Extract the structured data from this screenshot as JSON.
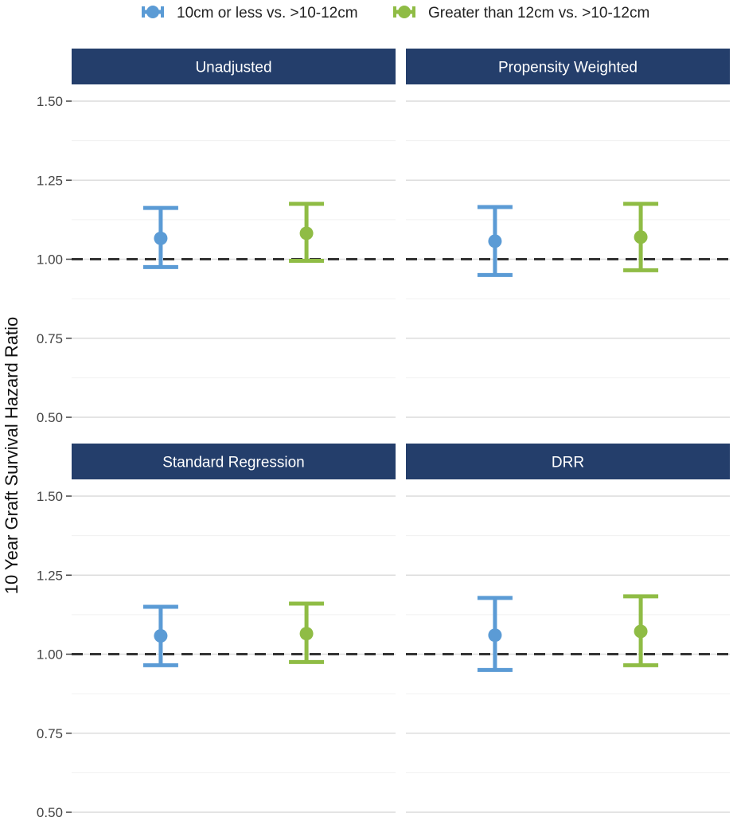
{
  "chart_data": {
    "type": "errorbar",
    "ylabel": "10 Year Graft Survival Hazard Ratio",
    "xlabel": "",
    "ylim": [
      0.5,
      1.5
    ],
    "yticks": [
      0.5,
      0.75,
      1.0,
      1.25,
      1.5
    ],
    "ytick_labels": [
      "0.50",
      "0.75",
      "1.00",
      "1.25",
      "1.50"
    ],
    "reference_line": 1.0,
    "grid": true,
    "legend_position": "top",
    "series": [
      {
        "name": "10cm or less vs. >10-12cm",
        "color": "#5b9bd5"
      },
      {
        "name": "Greater than 12cm vs. >10-12cm",
        "color": "#8fbc45"
      }
    ],
    "panels": [
      {
        "title": "Unadjusted",
        "estimates": [
          {
            "series": 0,
            "estimate": 1.066,
            "lower": 0.975,
            "upper": 1.162
          },
          {
            "series": 1,
            "estimate": 1.082,
            "lower": 0.995,
            "upper": 1.175
          }
        ]
      },
      {
        "title": "Propensity Weighted",
        "estimates": [
          {
            "series": 0,
            "estimate": 1.057,
            "lower": 0.95,
            "upper": 1.165
          },
          {
            "series": 1,
            "estimate": 1.07,
            "lower": 0.965,
            "upper": 1.175
          }
        ]
      },
      {
        "title": "Standard Regression",
        "estimates": [
          {
            "series": 0,
            "estimate": 1.058,
            "lower": 0.965,
            "upper": 1.15
          },
          {
            "series": 1,
            "estimate": 1.065,
            "lower": 0.975,
            "upper": 1.16
          }
        ]
      },
      {
        "title": "DRR",
        "estimates": [
          {
            "series": 0,
            "estimate": 1.06,
            "lower": 0.95,
            "upper": 1.178
          },
          {
            "series": 1,
            "estimate": 1.072,
            "lower": 0.965,
            "upper": 1.183
          }
        ]
      }
    ]
  }
}
